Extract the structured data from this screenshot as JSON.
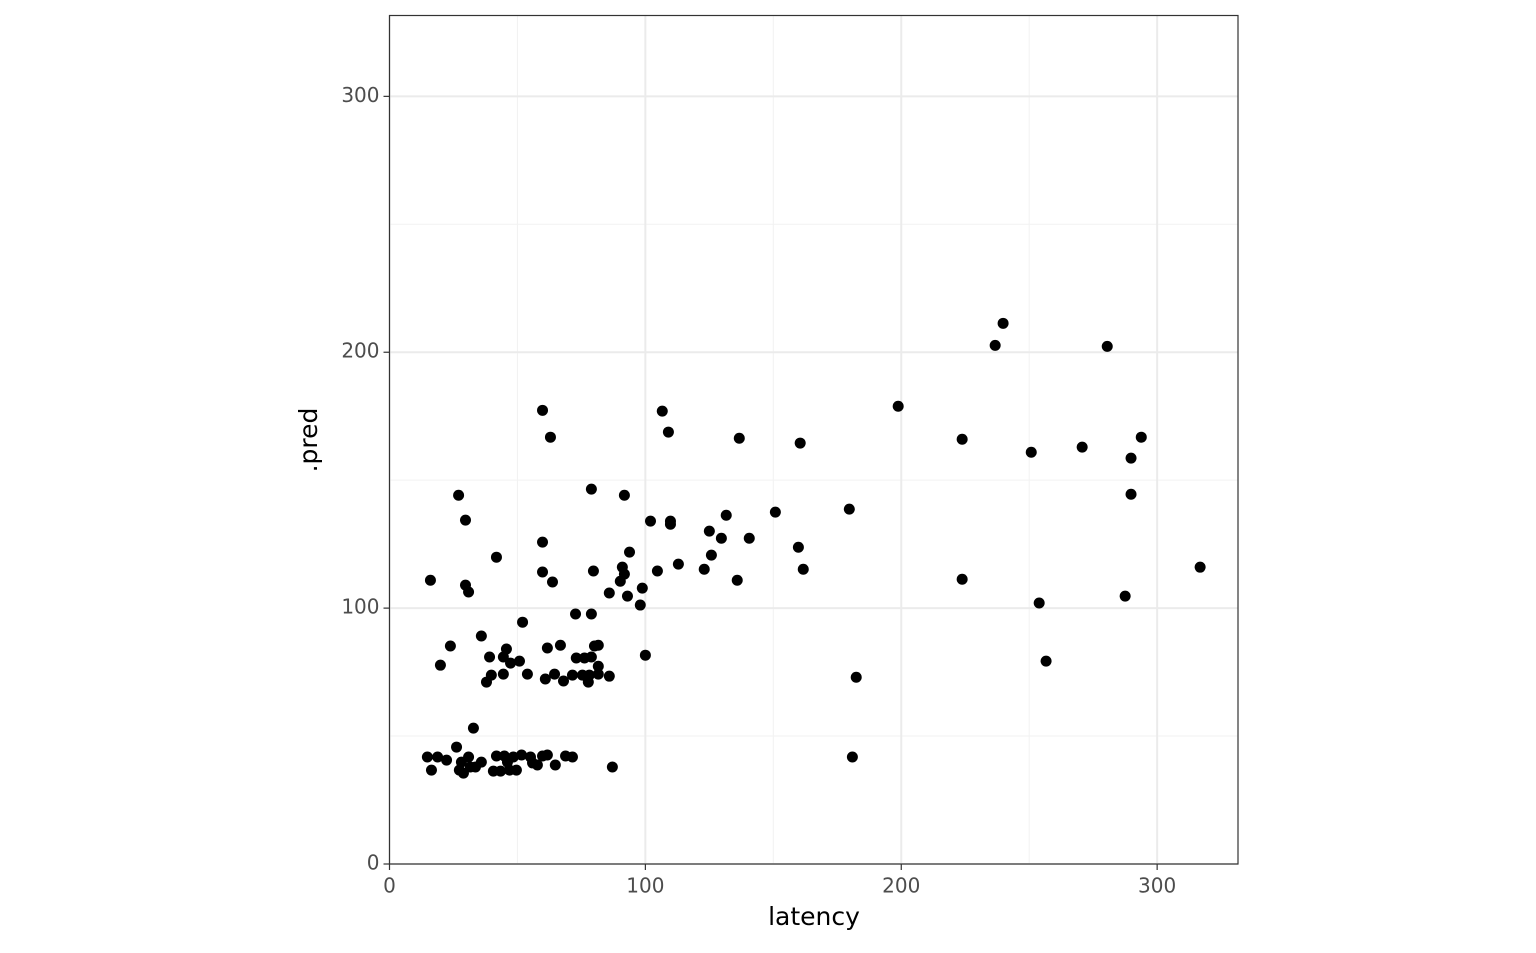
{
  "chart_data": {
    "type": "scatter",
    "x_label": "latency",
    "y_label": ".pred",
    "color": "#000000",
    "x": [
      16.0,
      16.4,
      14.8,
      18.8,
      19.9,
      22.3,
      23.8,
      26.2,
      27.0,
      27.3,
      28.1,
      28.9,
      29.7,
      29.7,
      30.9,
      30.9,
      31.6,
      32.8,
      33.6,
      35.9,
      35.9,
      37.9,
      39.1,
      39.8,
      40.6,
      41.8,
      41.8,
      43.4,
      44.5,
      44.5,
      44.9,
      45.7,
      46.1,
      46.9,
      47.3,
      48.4,
      49.6,
      50.8,
      51.6,
      52.0,
      53.9,
      55.1,
      55.9,
      57.8,
      59.8,
      59.8,
      59.8,
      59.8,
      60.9,
      61.7,
      61.7,
      62.9,
      63.7,
      64.5,
      64.8,
      66.8,
      68.0,
      68.8,
      71.5,
      71.5,
      72.7,
      73.0,
      75.4,
      76.2,
      77.7,
      78.1,
      78.9,
      78.9,
      78.9,
      79.7,
      80.1,
      81.6,
      81.6,
      81.6,
      85.9,
      85.9,
      87.1,
      90.2,
      91.0,
      91.8,
      91.8,
      93.0,
      93.8,
      98.0,
      98.8,
      100.0,
      102.0,
      104.7,
      106.6,
      109.0,
      109.8,
      109.8,
      112.9,
      123.0,
      125.0,
      125.8,
      129.7,
      131.6,
      135.9,
      136.7,
      140.6,
      150.8,
      159.8,
      160.5,
      161.7,
      179.7,
      180.9,
      182.4,
      198.8,
      223.8,
      223.8,
      236.7,
      239.8,
      250.8,
      253.9,
      256.6,
      270.7,
      280.5,
      287.5,
      289.8,
      289.8,
      293.8,
      316.8
    ],
    "values": [
      110.9,
      36.7,
      41.8,
      41.8,
      77.7,
      40.6,
      85.2,
      45.7,
      144.1,
      36.7,
      39.8,
      35.5,
      134.4,
      109.0,
      106.3,
      41.8,
      37.9,
      53.1,
      37.9,
      39.8,
      89.1,
      71.1,
      80.9,
      73.8,
      36.3,
      119.9,
      42.2,
      36.3,
      80.9,
      74.2,
      42.2,
      84.0,
      39.8,
      36.7,
      78.5,
      41.8,
      36.7,
      79.3,
      42.6,
      94.5,
      74.2,
      41.8,
      39.5,
      38.7,
      177.3,
      125.8,
      114.1,
      42.2,
      72.3,
      42.6,
      84.4,
      166.8,
      110.2,
      74.2,
      38.7,
      85.5,
      71.5,
      42.2,
      41.8,
      73.8,
      97.7,
      80.5,
      73.8,
      80.5,
      71.1,
      73.8,
      146.5,
      97.7,
      80.9,
      114.5,
      85.2,
      85.5,
      77.3,
      74.2,
      105.9,
      73.4,
      37.9,
      110.5,
      116.0,
      144.1,
      113.3,
      104.7,
      121.9,
      101.2,
      107.8,
      81.6,
      134.0,
      114.5,
      177.0,
      168.8,
      134.0,
      132.8,
      117.2,
      115.2,
      130.1,
      120.7,
      127.3,
      136.3,
      110.9,
      166.4,
      127.3,
      137.5,
      123.8,
      164.5,
      115.2,
      138.7,
      41.8,
      73.0,
      178.9,
      166.0,
      111.3,
      202.7,
      211.3,
      160.9,
      102.0,
      79.3,
      162.9,
      202.3,
      104.7,
      158.6,
      144.5,
      166.8,
      116.0
    ],
    "xlim": [
      0,
      331.6
    ],
    "ylim": [
      0,
      331.6
    ],
    "xticks": [
      0,
      100,
      200,
      300
    ],
    "yticks": [
      0,
      100,
      200,
      300
    ],
    "minor_xticks": [
      50,
      150,
      250
    ],
    "minor_yticks": [
      50,
      150,
      250
    ],
    "grid": true
  }
}
